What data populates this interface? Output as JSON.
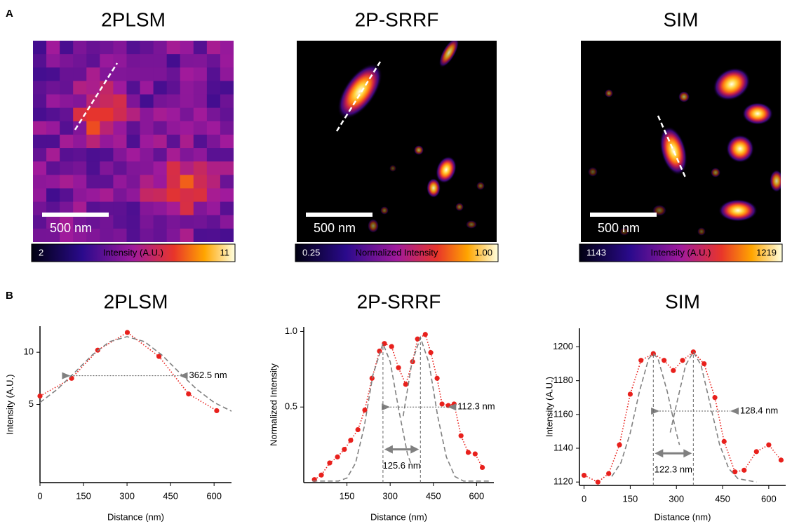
{
  "panel_labels": [
    "A",
    "B"
  ],
  "images": [
    {
      "title": "2PLSM",
      "scale_bar": "500 nm",
      "colorbar": {
        "min": "2",
        "label": "Intensity (A.U.)",
        "max": "11"
      }
    },
    {
      "title": "2P-SRRF",
      "scale_bar": "500 nm",
      "colorbar": {
        "min": "0.25",
        "label": "Normalized Intensity",
        "max": "1.00"
      }
    },
    {
      "title": "SIM",
      "scale_bar": "500 nm",
      "colorbar": {
        "min": "1143",
        "label": "Intensity (A.U.)",
        "max": "1219"
      }
    }
  ],
  "chart_data": [
    {
      "type": "line",
      "title": "2PLSM",
      "xlabel": "Distance (nm)",
      "ylabel": "Intensity (A.U.)",
      "xlim": [
        0,
        660
      ],
      "ylim": [
        -2.5,
        12.5
      ],
      "xticks": [
        0,
        150,
        300,
        450,
        600
      ],
      "yticks": [
        5,
        10
      ],
      "series": [
        {
          "style": "dotted-markers",
          "color": "#e8201c",
          "x": [
            0,
            109,
            199,
            301,
            410,
            512,
            609
          ],
          "values": [
            5.8,
            7.5,
            10.2,
            11.9,
            9.6,
            6.0,
            4.4
          ]
        },
        {
          "style": "dashed",
          "color": "#808080",
          "x": [
            0,
            60,
            120,
            180,
            240,
            300,
            360,
            420,
            480,
            540,
            600,
            660
          ],
          "values": [
            5.19,
            6.45,
            8.07,
            9.74,
            11.02,
            11.5,
            11.02,
            9.74,
            8.07,
            6.45,
            5.19,
            4.35
          ]
        }
      ],
      "annotations": [
        {
          "kind": "fwhm",
          "text": "362.5 nm",
          "x1": 105,
          "x2": 480,
          "y": 7.75
        }
      ]
    },
    {
      "type": "line",
      "title": "2P-SRRF",
      "xlabel": "Distance (nm)",
      "ylabel": "Normalized Intensity",
      "xlim": [
        0,
        660
      ],
      "ylim": [
        0,
        1.03
      ],
      "xticks": [
        150,
        300,
        450,
        600
      ],
      "yticks": [
        0.5,
        {
          "value": 1,
          "label": "1.0"
        }
      ],
      "series": [
        {
          "style": "dotted-markers",
          "color": "#e8201c",
          "x": [
            37,
            61,
            90,
            117,
            141,
            163,
            188,
            212,
            237,
            263,
            280,
            305,
            329,
            354,
            378,
            395,
            422,
            441,
            463,
            480,
            502,
            522,
            546,
            571,
            595,
            620
          ],
          "values": [
            0.02,
            0.05,
            0.13,
            0.17,
            0.22,
            0.28,
            0.35,
            0.48,
            0.69,
            0.87,
            0.92,
            0.9,
            0.76,
            0.65,
            0.8,
            0.95,
            0.98,
            0.86,
            0.69,
            0.52,
            0.51,
            0.52,
            0.31,
            0.2,
            0.19,
            0.1
          ]
        },
        {
          "style": "dashed",
          "color": "#808080",
          "x": [
            30,
            60,
            90,
            120,
            150,
            180,
            210,
            240,
            275,
            300,
            330,
            360,
            375
          ],
          "values": [
            0.01,
            0.01,
            0.01,
            0.01,
            0.03,
            0.13,
            0.37,
            0.71,
            0.92,
            0.8,
            0.48,
            0.19,
            0.11
          ]
        },
        {
          "style": "dashed",
          "color": "#808080",
          "x": [
            345,
            375,
            405,
            435,
            465,
            495,
            525,
            555,
            585,
            615,
            645
          ],
          "values": [
            0.44,
            0.79,
            0.96,
            0.79,
            0.44,
            0.17,
            0.04,
            0.01,
            0.01,
            0.01,
            0.01
          ]
        }
      ],
      "annotations": [
        {
          "kind": "fwhm",
          "text": "112.3 nm",
          "x1": 300,
          "x2": 500,
          "y": 0.5
        },
        {
          "kind": "separation",
          "text": "125.6 nm",
          "x1": 275,
          "x2": 405,
          "y": 0.22
        }
      ]
    },
    {
      "type": "line",
      "title": "SIM",
      "xlabel": "Distance (nm)",
      "ylabel": "Intensity (A.U.)",
      "xlim": [
        -15,
        655
      ],
      "ylim": [
        1118,
        1211
      ],
      "xticks": [
        0,
        150,
        300,
        450,
        600
      ],
      "yticks": [
        1120,
        1140,
        1160,
        1180,
        1200
      ],
      "series": [
        {
          "style": "dotted-markers",
          "color": "#e8201c",
          "x": [
            0,
            45,
            80,
            115,
            150,
            185,
            225,
            260,
            290,
            320,
            355,
            390,
            425,
            455,
            490,
            520,
            560,
            600,
            640
          ],
          "values": [
            1124,
            1120,
            1125,
            1142,
            1172,
            1192,
            1196,
            1192,
            1186,
            1192,
            1197,
            1190,
            1170,
            1144,
            1126,
            1127,
            1138,
            1142,
            1133
          ]
        },
        {
          "style": "dashed",
          "color": "#808080",
          "x": [
            90,
            120,
            150,
            180,
            210,
            225,
            240,
            270,
            300,
            310
          ],
          "values": [
            1123.3,
            1131.5,
            1149,
            1173.7,
            1193.1,
            1196,
            1193.1,
            1173.7,
            1149,
            1142
          ]
        },
        {
          "style": "dashed",
          "color": "#808080",
          "x": [
            280,
            300,
            330,
            355,
            380,
            410,
            440,
            470,
            500,
            560
          ],
          "values": [
            1149.3,
            1165.8,
            1189.2,
            1197,
            1189.2,
            1165.8,
            1142.3,
            1128,
            1122,
            1120
          ]
        }
      ],
      "annotations": [
        {
          "kind": "fwhm",
          "text": "128.4 nm",
          "x1": 245,
          "x2": 475,
          "y": 1162
        },
        {
          "kind": "separation",
          "text": "122.3 nm",
          "x1": 225,
          "x2": 355,
          "y": 1137
        }
      ]
    }
  ]
}
